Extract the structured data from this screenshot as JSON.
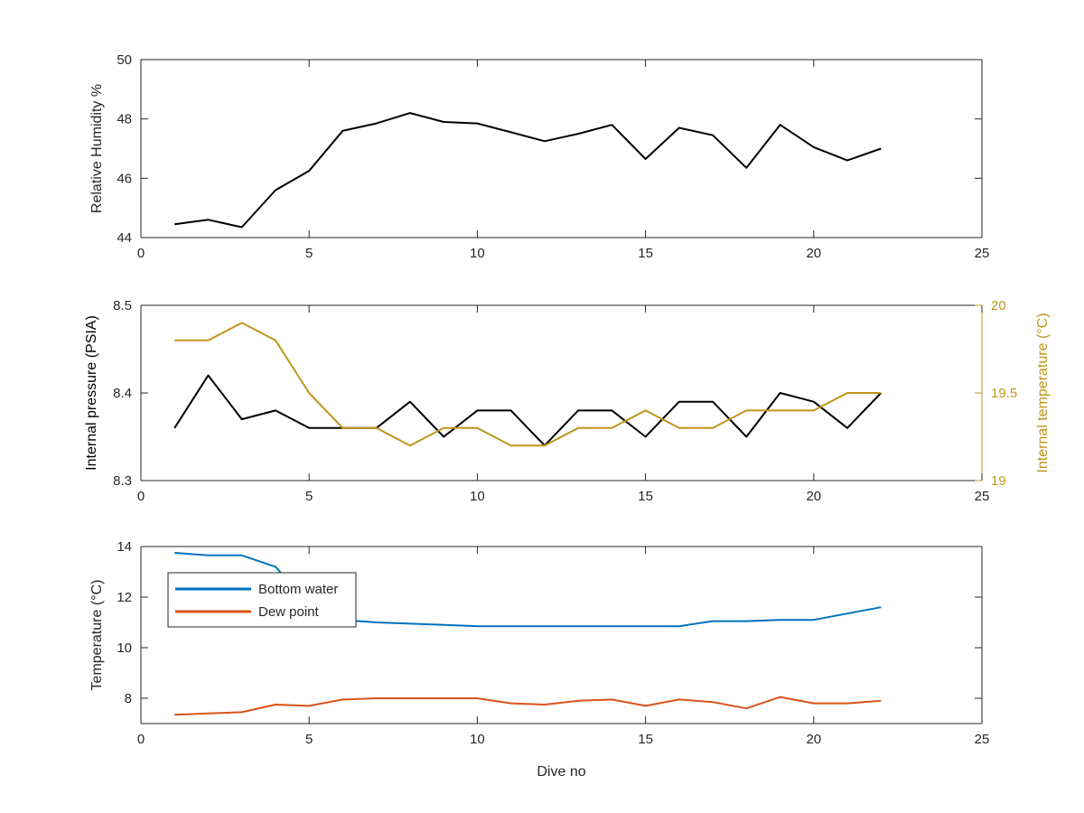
{
  "chart_data": [
    {
      "type": "line",
      "xlabel": "",
      "ylabel": "Relative Humidity %",
      "xlim": [
        0,
        25
      ],
      "ylim": [
        44,
        50
      ],
      "xticks": [
        0,
        5,
        10,
        15,
        20,
        25
      ],
      "yticks": [
        44,
        46,
        48,
        50
      ],
      "grid": false,
      "x": [
        1,
        2,
        3,
        4,
        5,
        6,
        7,
        8,
        9,
        10,
        11,
        12,
        13,
        14,
        15,
        16,
        17,
        18,
        19,
        20,
        21,
        22
      ],
      "series": [
        {
          "color": "#000000",
          "values": [
            44.45,
            44.6,
            44.35,
            45.6,
            46.25,
            47.6,
            47.85,
            48.2,
            47.9,
            47.85,
            47.55,
            47.25,
            47.5,
            47.8,
            46.65,
            47.7,
            47.45,
            46.35,
            47.8,
            47.05,
            46.6,
            47.0
          ]
        }
      ]
    },
    {
      "type": "line",
      "xlabel": "",
      "ylabel": "Internal pressure (PSIA)",
      "y2label": "Internal temperature (°C)",
      "xlim": [
        0,
        25
      ],
      "ylim": [
        8.3,
        8.5
      ],
      "y2lim": [
        19,
        20
      ],
      "xticks": [
        0,
        5,
        10,
        15,
        20,
        25
      ],
      "yticks": [
        8.3,
        8.4,
        8.5
      ],
      "yticklabels": [
        "8.3",
        "8.4",
        "8.5"
      ],
      "y2ticks": [
        19,
        19.5,
        20
      ],
      "y2ticklabels": [
        "19",
        "19.5",
        "20"
      ],
      "grid": false,
      "x": [
        1,
        2,
        3,
        4,
        5,
        6,
        7,
        8,
        9,
        10,
        11,
        12,
        13,
        14,
        15,
        16,
        17,
        18,
        19,
        20,
        21,
        22
      ],
      "series": [
        {
          "axis": "left",
          "color": "#000000",
          "values": [
            8.36,
            8.42,
            8.37,
            8.38,
            8.36,
            8.36,
            8.36,
            8.39,
            8.35,
            8.38,
            8.38,
            8.34,
            8.38,
            8.38,
            8.35,
            8.39,
            8.39,
            8.35,
            8.4,
            8.39,
            8.36,
            8.4
          ]
        },
        {
          "axis": "right",
          "color": "#C0951B",
          "values": [
            19.8,
            19.8,
            19.9,
            19.8,
            19.5,
            19.3,
            19.3,
            19.2,
            19.3,
            19.3,
            19.2,
            19.2,
            19.3,
            19.3,
            19.4,
            19.3,
            19.3,
            19.4,
            19.4,
            19.4,
            19.5,
            19.5
          ]
        }
      ]
    },
    {
      "type": "line",
      "xlabel": "Dive no",
      "ylabel": "Temperature (°C)",
      "xlim": [
        0,
        25
      ],
      "ylim": [
        7,
        14
      ],
      "xticks": [
        0,
        5,
        10,
        15,
        20,
        25
      ],
      "yticks": [
        8,
        10,
        12,
        14
      ],
      "grid": false,
      "legend": "upper-left",
      "x": [
        1,
        2,
        3,
        4,
        5,
        6,
        7,
        8,
        9,
        10,
        11,
        12,
        13,
        14,
        15,
        16,
        17,
        18,
        19,
        20,
        21,
        22
      ],
      "series": [
        {
          "name": "Bottom water",
          "color": "#0072BD",
          "values": [
            13.75,
            13.65,
            13.65,
            13.2,
            11.7,
            11.1,
            11.0,
            10.95,
            10.9,
            10.85,
            10.85,
            10.85,
            10.85,
            10.85,
            10.85,
            10.85,
            11.05,
            11.05,
            11.1,
            11.1,
            11.35,
            11.6
          ]
        },
        {
          "name": "Dew point",
          "color": "#D95319",
          "values": [
            7.35,
            7.4,
            7.45,
            7.75,
            7.7,
            7.95,
            8.0,
            8.0,
            8.0,
            8.0,
            7.8,
            7.75,
            7.9,
            7.95,
            7.7,
            7.95,
            7.85,
            7.6,
            8.05,
            7.8,
            7.8,
            7.9
          ]
        }
      ]
    }
  ]
}
